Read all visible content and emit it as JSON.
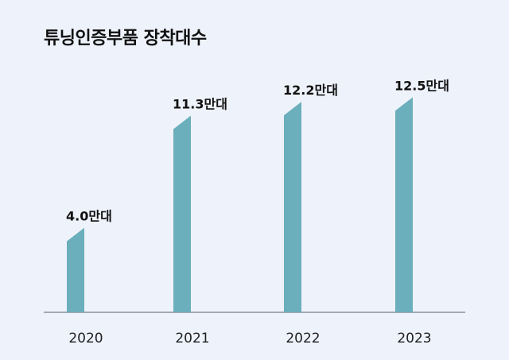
{
  "chart_data": {
    "type": "bar",
    "title": "튜닝인증부품 장착대수",
    "categories": [
      "2020",
      "2021",
      "2022",
      "2023"
    ],
    "values": [
      4.0,
      11.3,
      12.2,
      12.5
    ],
    "data_labels": [
      "4.0만대",
      "11.3만대",
      "12.2만대",
      "12.5만대"
    ],
    "unit": "만대",
    "xlabel": "",
    "ylabel": "",
    "ylim": [
      -1.5,
      13.5
    ],
    "grid": false,
    "bar_color": "#6aafbb",
    "axis_color": "#8a8f99"
  }
}
